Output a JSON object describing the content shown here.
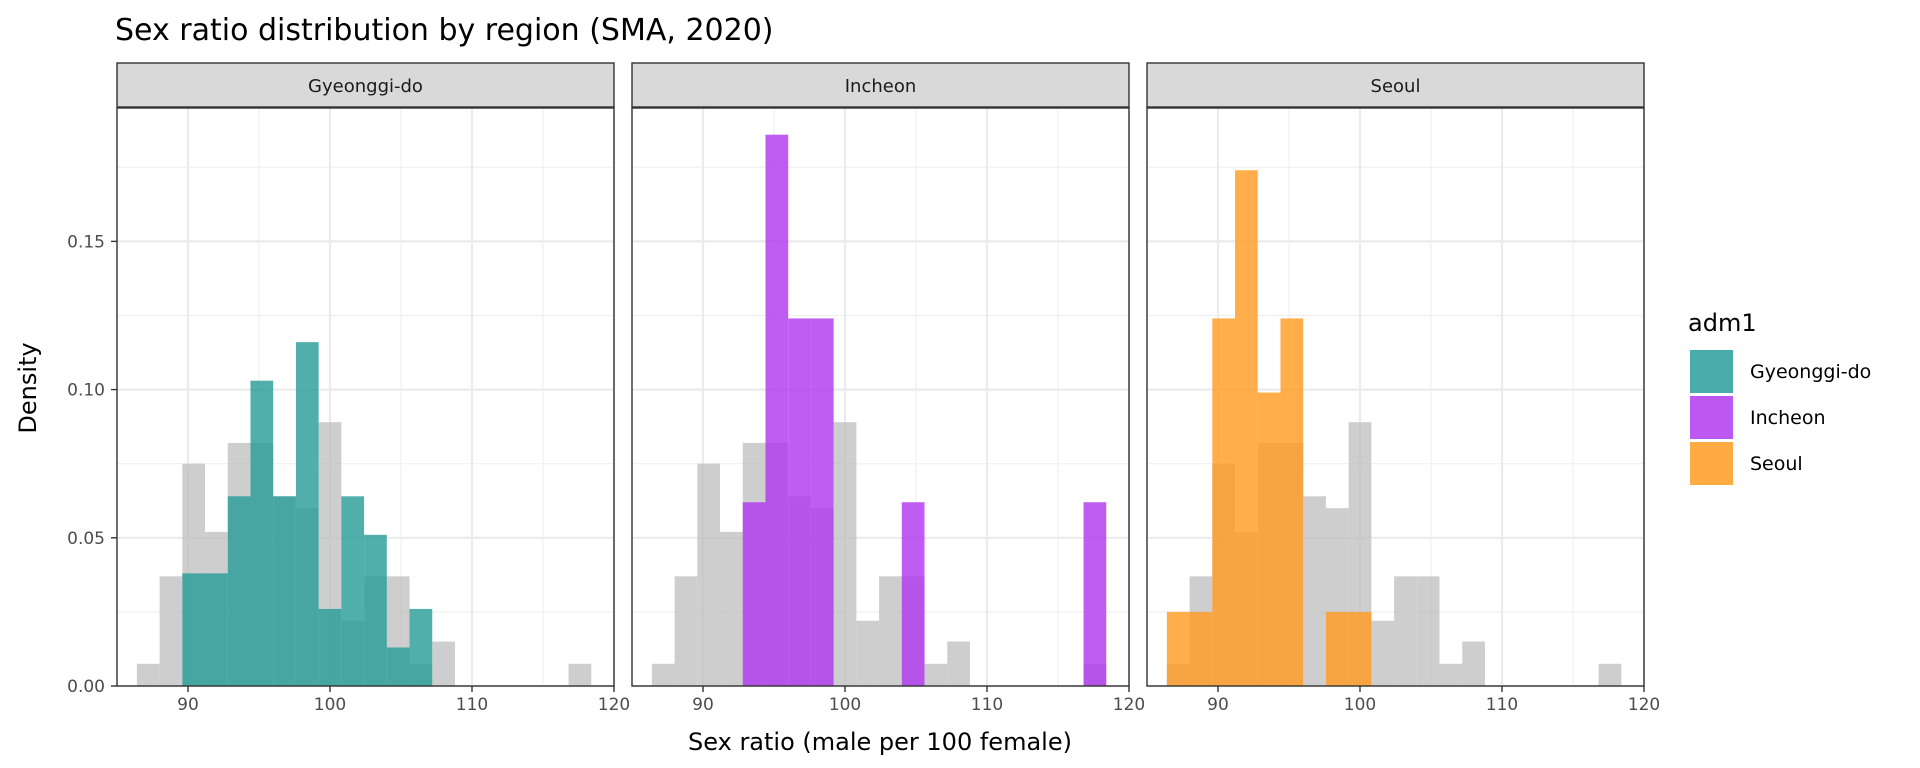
{
  "chart_data": {
    "type": "histogram",
    "title": "Sex ratio distribution by region (SMA, 2020)",
    "xlabel": "Sex ratio (male per 100 female)",
    "ylabel": "Density",
    "xlim": [
      85,
      120
    ],
    "ylim": [
      0,
      0.195
    ],
    "x_ticks": [
      90,
      100,
      110,
      120
    ],
    "y_ticks": [
      0.0,
      0.05,
      0.1,
      0.15
    ],
    "y_tick_labels": [
      "0.00",
      "0.05",
      "0.10",
      "0.15"
    ],
    "grid": true,
    "bin_width": 1.6,
    "bin_edges": [
      86.4,
      88.0,
      89.6,
      91.2,
      92.8,
      94.4,
      96.0,
      97.6,
      99.2,
      100.8,
      102.4,
      104.0,
      105.6,
      107.2,
      108.8,
      110.4,
      112.0,
      113.6,
      115.2,
      116.8,
      118.4
    ],
    "background_series": {
      "name": "All regions",
      "color": "#bebebe",
      "values": [
        0.0075,
        0.037,
        0.075,
        0.052,
        0.082,
        0.082,
        0.064,
        0.06,
        0.089,
        0.022,
        0.037,
        0.037,
        0.0075,
        0.015,
        0,
        0,
        0,
        0,
        0,
        0.0075
      ]
    },
    "legend": {
      "title": "adm1",
      "position": "right",
      "items": [
        {
          "label": "Gyeonggi-do",
          "color": "#2a9d99"
        },
        {
          "label": "Incheon",
          "color": "#b139ef"
        },
        {
          "label": "Seoul",
          "color": "#ff9c23"
        }
      ]
    },
    "panels": [
      {
        "strip": "Gyeonggi-do",
        "color": "#2a9d99",
        "values": [
          0,
          0,
          0.038,
          0.038,
          0.064,
          0.103,
          0.064,
          0.116,
          0.026,
          0.064,
          0.051,
          0.013,
          0.026,
          0,
          0,
          0,
          0,
          0,
          0,
          0
        ]
      },
      {
        "strip": "Incheon",
        "color": "#b139ef",
        "values": [
          0,
          0,
          0,
          0,
          0.062,
          0.186,
          0.124,
          0.124,
          0,
          0,
          0,
          0.062,
          0,
          0,
          0,
          0,
          0,
          0,
          0,
          0.062
        ]
      },
      {
        "strip": "Seoul",
        "color": "#ff9c23",
        "values": [
          0.025,
          0.025,
          0.124,
          0.174,
          0.099,
          0.124,
          0,
          0.025,
          0.025,
          0,
          0,
          0,
          0,
          0,
          0,
          0,
          0,
          0,
          0,
          0
        ]
      }
    ]
  }
}
